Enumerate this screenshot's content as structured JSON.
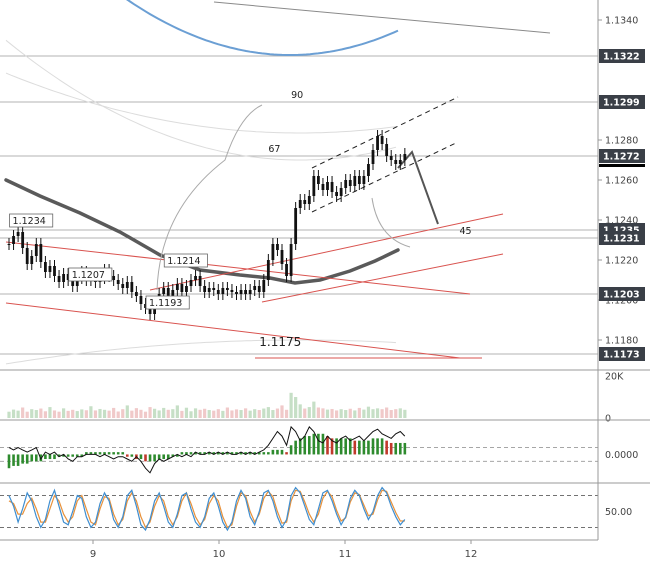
{
  "chart_data": {
    "type": "candlestick",
    "x_ticks": [
      "9",
      "10",
      "11",
      "12"
    ],
    "price_axis": {
      "ticks": [
        "1.1340",
        "1.1280",
        "1.1260",
        "1.1240",
        "1.1220",
        "1.1200",
        "1.1180"
      ],
      "ylim": [
        1.1165,
        1.135
      ]
    },
    "price_badges": [
      {
        "label": "1.1322",
        "value": 1.1322,
        "style": "dark"
      },
      {
        "label": "1.1299",
        "value": 1.1299,
        "style": "dark"
      },
      {
        "label": "1.1272",
        "value": 1.1272,
        "style": "dark"
      },
      {
        "label": "1.1235",
        "value": 1.1235,
        "style": "dark"
      },
      {
        "label": "1.1231",
        "value": 1.1231,
        "style": "dark"
      },
      {
        "label": "1.1203",
        "value": 1.1203,
        "style": "dark"
      },
      {
        "label": "1.1173",
        "value": 1.1173,
        "style": "dark"
      }
    ],
    "candles_close": [
      1.1228,
      1.1232,
      1.1234,
      1.1226,
      1.1218,
      1.1222,
      1.1228,
      1.1219,
      1.1214,
      1.1217,
      1.1212,
      1.1209,
      1.1213,
      1.121,
      1.1207,
      1.1211,
      1.1214,
      1.121,
      1.1213,
      1.1209,
      1.1211,
      1.1215,
      1.1212,
      1.121,
      1.1208,
      1.1206,
      1.1209,
      1.1204,
      1.1202,
      1.1198,
      1.1196,
      1.1193,
      1.1199,
      1.1203,
      1.1206,
      1.1202,
      1.1205,
      1.1208,
      1.1204,
      1.1207,
      1.121,
      1.1212,
      1.1207,
      1.1204,
      1.1206,
      1.1205,
      1.1203,
      1.1206,
      1.1205,
      1.1204,
      1.1203,
      1.1205,
      1.1203,
      1.1205,
      1.1207,
      1.1204,
      1.121,
      1.122,
      1.1228,
      1.1225,
      1.1218,
      1.1212,
      1.1228,
      1.1246,
      1.125,
      1.1248,
      1.1252,
      1.1262,
      1.1258,
      1.1255,
      1.1259,
      1.1254,
      1.1252,
      1.1256,
      1.126,
      1.1257,
      1.1262,
      1.1258,
      1.1262,
      1.1268,
      1.1275,
      1.1282,
      1.1278,
      1.1272,
      1.127,
      1.1268,
      1.127,
      1.1273
    ],
    "annotations": [
      {
        "label": "1.1234",
        "x": 1,
        "y": 1.1234,
        "boxed": true
      },
      {
        "label": "1.1214",
        "x": 35,
        "y": 1.1214,
        "boxed": true
      },
      {
        "label": "1.1207",
        "x": 14,
        "y": 1.1207,
        "boxed": true
      },
      {
        "label": "1.1193",
        "x": 31,
        "y": 1.1193,
        "boxed": true
      },
      {
        "label": "1.1175",
        "x": 55,
        "y": 1.1175,
        "boxed": false
      },
      {
        "label": "90",
        "x": 62,
        "y": 1.1299,
        "boxed": false
      },
      {
        "label": "67",
        "x": 57,
        "y": 1.1272,
        "boxed": false
      },
      {
        "label": "45",
        "x": 99,
        "y": 1.1231,
        "boxed": false
      }
    ],
    "volume_panel": {
      "ticks": [
        "20K",
        "0"
      ],
      "ylim": [
        0,
        20000
      ],
      "values": [
        3000,
        4000,
        3500,
        5000,
        3000,
        4200,
        3800,
        4500,
        3200,
        5200,
        3600,
        3000,
        4600,
        3400,
        3900,
        3300,
        4100,
        3700,
        5600,
        3600,
        4300,
        3900,
        3500,
        4800,
        3100,
        4200,
        6000,
        3500,
        4700,
        3900,
        3000,
        5200,
        4400,
        3600,
        4800,
        3900,
        4200,
        6000,
        3400,
        4900,
        3200,
        4600,
        3900,
        4400,
        3800,
        3500,
        4200,
        3400,
        5000,
        3600,
        4100,
        3800,
        4600,
        3500,
        4200,
        3800,
        4500,
        5200,
        3800,
        4500,
        6000,
        3900,
        12000,
        10000,
        6500,
        4500,
        5200,
        7800,
        5000,
        4600,
        4000,
        4300,
        3600,
        4200,
        3800,
        4400,
        3600,
        4800,
        4000,
        5400,
        4200,
        4600,
        4200,
        5000,
        3800,
        4200,
        4600,
        3900
      ]
    },
    "macd_panel": {
      "ticks": [
        "0.0000"
      ],
      "ylim": [
        -0.0012,
        0.0015
      ],
      "histogram": [
        -0.0006,
        -0.0005,
        -0.0005,
        -0.0004,
        -0.0004,
        -0.0003,
        -0.0003,
        -0.0003,
        -0.0002,
        -0.0002,
        -0.0002,
        -0.0001,
        -0.0001,
        -0.0001,
        -0.0001,
        -0.0001,
        -0.0001,
        0.0001,
        0.0001,
        0.0001,
        0.0001,
        0.0001,
        0.0001,
        0.0001,
        0.0001,
        0.0001,
        -0.0001,
        -0.0001,
        -0.0002,
        -0.0002,
        -0.0003,
        -0.0003,
        -0.0003,
        -0.0002,
        -0.0002,
        -0.0002,
        -0.0001,
        -0.0001,
        0.0001,
        0.0001,
        0.0001,
        0.0001,
        0.0001,
        0.0001,
        0.0001,
        0.0001,
        0.0001,
        0.0001,
        0.0001,
        0.0001,
        0.0001,
        0.0001,
        0.0001,
        0.0001,
        0.0001,
        0.0001,
        0.0001,
        0.0001,
        0.0002,
        0.0002,
        0.0002,
        0.0001,
        0.0004,
        0.0006,
        0.0007,
        0.0008,
        0.0008,
        0.0009,
        0.0009,
        0.0009,
        0.0008,
        0.0007,
        0.0007,
        0.0007,
        0.0007,
        0.0007,
        0.0006,
        0.0006,
        0.0006,
        0.0006,
        0.0007,
        0.0007,
        0.0007,
        0.0006,
        0.0005,
        0.0005,
        0.0005,
        0.0005
      ],
      "line": [
        0.0003,
        0.0002,
        0.0003,
        0.0002,
        0.0001,
        0.0002,
        0.0003,
        -0.0002,
        0.0001,
        0.0,
        0.0001,
        -0.0001,
        0.0,
        -0.0002,
        -0.0003,
        -0.0001,
        -0.0001,
        0.0,
        0.0,
        0.0,
        -0.0001,
        0.0,
        -0.0001,
        -0.0002,
        -0.0001,
        -0.0001,
        -0.0002,
        -0.0003,
        -0.0001,
        -0.0003,
        -0.0006,
        -0.0008,
        -0.0004,
        -0.0002,
        -0.0003,
        -0.0002,
        -0.0001,
        0.0,
        -0.0001,
        0.0,
        -0.0001,
        0.0001,
        0.0,
        0.0,
        0.0001,
        0.0,
        0.0001,
        0.0,
        0.0001,
        0.0,
        0.0,
        0.0001,
        0.0,
        0.0001,
        0.0,
        0.0001,
        0.0002,
        0.0004,
        0.0007,
        0.001,
        0.0008,
        0.0004,
        0.0012,
        0.001,
        0.0006,
        0.0008,
        0.0012,
        0.001,
        0.0006,
        0.0005,
        0.0008,
        0.0006,
        0.0005,
        0.0007,
        0.0008,
        0.0006,
        0.0007,
        0.0008,
        0.0006,
        0.0008,
        0.001,
        0.0011,
        0.0009,
        0.0008,
        0.0007,
        0.0009,
        0.001,
        0.0008
      ]
    },
    "stoch_panel": {
      "ticks": [
        "50.00"
      ],
      "ylim": [
        0,
        100
      ],
      "k": [
        80,
        60,
        30,
        55,
        85,
        70,
        40,
        20,
        35,
        70,
        90,
        60,
        30,
        25,
        50,
        80,
        75,
        40,
        20,
        30,
        65,
        85,
        70,
        35,
        20,
        40,
        80,
        90,
        60,
        25,
        15,
        35,
        70,
        85,
        60,
        30,
        20,
        45,
        80,
        85,
        55,
        30,
        20,
        40,
        75,
        85,
        60,
        30,
        15,
        30,
        70,
        90,
        75,
        40,
        25,
        50,
        85,
        90,
        70,
        40,
        20,
        35,
        80,
        95,
        85,
        60,
        35,
        25,
        55,
        85,
        90,
        70,
        45,
        25,
        40,
        75,
        90,
        80,
        55,
        35,
        50,
        80,
        95,
        85,
        60,
        40,
        25,
        35
      ],
      "d": [
        70,
        65,
        45,
        45,
        65,
        75,
        55,
        30,
        30,
        55,
        80,
        70,
        45,
        30,
        40,
        70,
        80,
        55,
        30,
        25,
        55,
        78,
        75,
        45,
        25,
        35,
        70,
        85,
        70,
        40,
        20,
        30,
        60,
        80,
        70,
        40,
        25,
        40,
        70,
        85,
        65,
        40,
        25,
        35,
        65,
        80,
        70,
        40,
        20,
        25,
        60,
        85,
        80,
        50,
        30,
        45,
        75,
        88,
        78,
        50,
        28,
        30,
        70,
        90,
        88,
        68,
        45,
        30,
        45,
        75,
        88,
        78,
        52,
        32,
        38,
        68,
        85,
        82,
        62,
        42,
        45,
        72,
        90,
        88,
        68,
        48,
        32,
        32
      ]
    }
  }
}
